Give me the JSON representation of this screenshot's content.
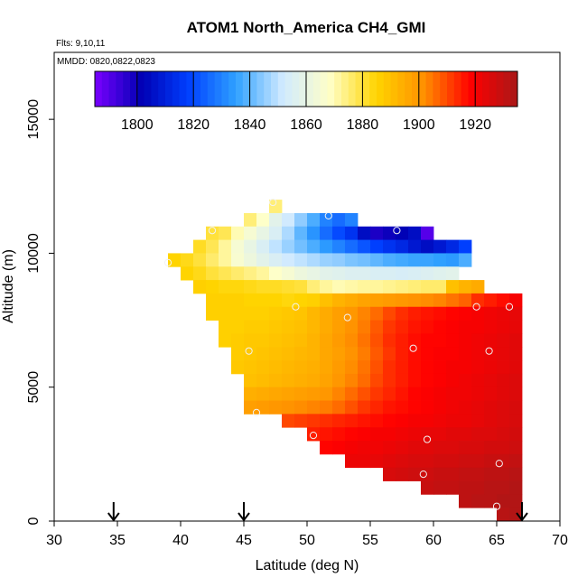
{
  "chart_data": {
    "type": "heatmap",
    "title": "ATOM1 North_America CH4_GMI",
    "flights_label": "Flts: 9,10,11",
    "dates_label": "MMDD: 0820,0822,0823",
    "xlabel": "Latitude (deg N)",
    "ylabel": "Altitude (m)",
    "xlim": [
      30,
      70
    ],
    "ylim": [
      0,
      17500
    ],
    "x_ticks": [
      30,
      35,
      40,
      45,
      50,
      55,
      60,
      65,
      70
    ],
    "y_ticks": [
      0,
      5000,
      10000,
      15000
    ],
    "colorbar": {
      "min": 1785,
      "max": 1935,
      "ticks": [
        1800,
        1820,
        1840,
        1860,
        1880,
        1900,
        1920
      ],
      "stops": [
        "#7a00ff",
        "#0000b4",
        "#0040ff",
        "#2fa0ff",
        "#d0eaff",
        "#ffffc8",
        "#ffd400",
        "#ff9000",
        "#ff0000",
        "#a81818"
      ]
    },
    "cell_size": {
      "lat": 1,
      "alt": 500
    },
    "rows": [
      {
        "alt": 11750,
        "lat_start": 47,
        "values": [
          1875
        ]
      },
      {
        "alt": 11250,
        "lat_start": 45,
        "values": [
          1875,
          1868,
          1858,
          1852,
          1845,
          1838,
          1830,
          1826,
          1830
        ]
      },
      {
        "alt": 10750,
        "lat_start": 42,
        "values": [
          1880,
          1878,
          1870,
          1865,
          1860,
          1855,
          1848,
          1840,
          1833,
          1826,
          1820,
          1815,
          1805,
          1798,
          1800,
          1802,
          1805,
          1790
        ]
      },
      {
        "alt": 10250,
        "lat_start": 41,
        "values": [
          1882,
          1878,
          1872,
          1865,
          1860,
          1855,
          1850,
          1846,
          1842,
          1838,
          1834,
          1830,
          1826,
          1822,
          1818,
          1815,
          1812,
          1808,
          1805,
          1808,
          1812,
          1818
        ]
      },
      {
        "alt": 9750,
        "lat_start": 39,
        "values": [
          1885,
          1883,
          1880,
          1876,
          1872,
          1866,
          1862,
          1858,
          1855,
          1852,
          1850,
          1848,
          1846,
          1845,
          1843,
          1842,
          1840,
          1838,
          1837,
          1836,
          1836,
          1835,
          1834,
          1838
        ]
      },
      {
        "alt": 9250,
        "lat_start": 40,
        "values": [
          1885,
          1883,
          1880,
          1878,
          1876,
          1874,
          1872,
          1868,
          1865,
          1862,
          1860,
          1858,
          1857,
          1856,
          1856,
          1855,
          1855,
          1854,
          1855,
          1856,
          1857,
          1858
        ]
      },
      {
        "alt": 8750,
        "lat_start": 41,
        "values": [
          1886,
          1885,
          1884,
          1884,
          1883,
          1882,
          1882,
          1881,
          1880,
          1875,
          1872,
          1870,
          1871,
          1872,
          1872,
          1873,
          1874,
          1875,
          1876,
          1876,
          1890,
          1893,
          1895
        ]
      },
      {
        "alt": 8250,
        "lat_start": 42,
        "values": [
          1886,
          1886,
          1886,
          1885,
          1885,
          1885,
          1884,
          1885,
          1886,
          1890,
          1893,
          1895,
          1897,
          1898,
          1899,
          1900,
          1901,
          1902,
          1903,
          1905,
          1907,
          1913,
          1915,
          1917,
          1920
        ]
      },
      {
        "alt": 7750,
        "lat_start": 42,
        "values": [
          1886,
          1886,
          1886,
          1886,
          1886,
          1887,
          1888,
          1889,
          1892,
          1895,
          1898,
          1900,
          1903,
          1906,
          1910,
          1913,
          1915,
          1916,
          1917,
          1918,
          1919,
          1920,
          1921,
          1922,
          1923
        ]
      },
      {
        "alt": 7250,
        "lat_start": 43,
        "values": [
          1886,
          1886,
          1887,
          1887,
          1888,
          1889,
          1890,
          1892,
          1895,
          1898,
          1901,
          1904,
          1908,
          1912,
          1914,
          1916,
          1917,
          1918,
          1919,
          1920,
          1920,
          1921,
          1922,
          1923
        ]
      },
      {
        "alt": 6750,
        "lat_start": 43,
        "values": [
          1886,
          1887,
          1888,
          1888,
          1889,
          1890,
          1891,
          1893,
          1896,
          1899,
          1902,
          1905,
          1909,
          1913,
          1915,
          1917,
          1918,
          1918,
          1919,
          1920,
          1921,
          1922,
          1923,
          1924
        ]
      },
      {
        "alt": 6250,
        "lat_start": 44,
        "values": [
          1887,
          1888,
          1889,
          1890,
          1891,
          1892,
          1893,
          1896,
          1898,
          1901,
          1904,
          1908,
          1912,
          1915,
          1917,
          1918,
          1919,
          1919,
          1920,
          1921,
          1922,
          1923,
          1924
        ]
      },
      {
        "alt": 5750,
        "lat_start": 44,
        "values": [
          1888,
          1889,
          1890,
          1891,
          1892,
          1893,
          1894,
          1896,
          1899,
          1902,
          1905,
          1909,
          1913,
          1915,
          1917,
          1918,
          1919,
          1920,
          1920,
          1921,
          1922,
          1923,
          1924
        ]
      },
      {
        "alt": 5250,
        "lat_start": 45,
        "values": [
          1890,
          1891,
          1892,
          1893,
          1894,
          1895,
          1897,
          1900,
          1903,
          1906,
          1910,
          1913,
          1915,
          1917,
          1918,
          1919,
          1920,
          1921,
          1922,
          1923,
          1924,
          1925
        ]
      },
      {
        "alt": 4750,
        "lat_start": 45,
        "values": [
          1894,
          1895,
          1896,
          1897,
          1898,
          1899,
          1900,
          1903,
          1906,
          1909,
          1912,
          1914,
          1916,
          1918,
          1919,
          1920,
          1921,
          1921,
          1922,
          1923,
          1924,
          1925
        ]
      },
      {
        "alt": 4250,
        "lat_start": 45,
        "values": [
          1898,
          1899,
          1900,
          1901,
          1902,
          1903,
          1904,
          1906,
          1909,
          1912,
          1914,
          1916,
          1917,
          1918,
          1919,
          1920,
          1921,
          1922,
          1923,
          1924,
          1925,
          1926
        ]
      },
      {
        "alt": 3750,
        "lat_start": 48,
        "values": [
          1910,
          1911,
          1912,
          1913,
          1914,
          1915,
          1916,
          1917,
          1918,
          1919,
          1920,
          1920,
          1921,
          1922,
          1922,
          1923,
          1924,
          1925,
          1926
        ]
      },
      {
        "alt": 3250,
        "lat_start": 50,
        "values": [
          1915,
          1916,
          1917,
          1918,
          1919,
          1920,
          1920,
          1921,
          1922,
          1923,
          1923,
          1924,
          1924,
          1925,
          1925,
          1926,
          1927
        ]
      },
      {
        "alt": 2750,
        "lat_start": 51,
        "values": [
          1918,
          1919,
          1920,
          1921,
          1921,
          1922,
          1923,
          1924,
          1924,
          1925,
          1925,
          1926,
          1926,
          1927,
          1927,
          1928
        ]
      },
      {
        "alt": 2250,
        "lat_start": 53,
        "values": [
          1922,
          1922,
          1923,
          1924,
          1925,
          1926,
          1926,
          1927,
          1927,
          1928,
          1928,
          1929,
          1929,
          1930
        ]
      },
      {
        "alt": 1750,
        "lat_start": 56,
        "values": [
          1926,
          1927,
          1928,
          1928,
          1929,
          1929,
          1930,
          1930,
          1931,
          1931,
          1932
        ]
      },
      {
        "alt": 1250,
        "lat_start": 59,
        "values": [
          1929,
          1930,
          1930,
          1931,
          1931,
          1932,
          1932,
          1933
        ]
      },
      {
        "alt": 750,
        "lat_start": 62,
        "values": [
          1931,
          1932,
          1932,
          1933,
          1933
        ]
      },
      {
        "alt": 250,
        "lat_start": 65,
        "values": [
          1932,
          1933
        ]
      }
    ],
    "observations": [
      {
        "lat": 47.3,
        "alt": 11900
      },
      {
        "lat": 51.7,
        "alt": 11400
      },
      {
        "lat": 42.5,
        "alt": 10850
      },
      {
        "lat": 57.1,
        "alt": 10850
      },
      {
        "lat": 39.0,
        "alt": 9650
      },
      {
        "lat": 49.1,
        "alt": 8000
      },
      {
        "lat": 63.4,
        "alt": 8000
      },
      {
        "lat": 66.0,
        "alt": 8000
      },
      {
        "lat": 53.2,
        "alt": 7600
      },
      {
        "lat": 58.4,
        "alt": 6450
      },
      {
        "lat": 64.4,
        "alt": 6350
      },
      {
        "lat": 45.4,
        "alt": 6350
      },
      {
        "lat": 46.0,
        "alt": 4050
      },
      {
        "lat": 50.5,
        "alt": 3200
      },
      {
        "lat": 59.5,
        "alt": 3050
      },
      {
        "lat": 65.2,
        "alt": 2150
      },
      {
        "lat": 59.2,
        "alt": 1750
      },
      {
        "lat": 65.0,
        "alt": 550
      }
    ],
    "arrows_lat": [
      34.7,
      45.0,
      67.0
    ]
  }
}
